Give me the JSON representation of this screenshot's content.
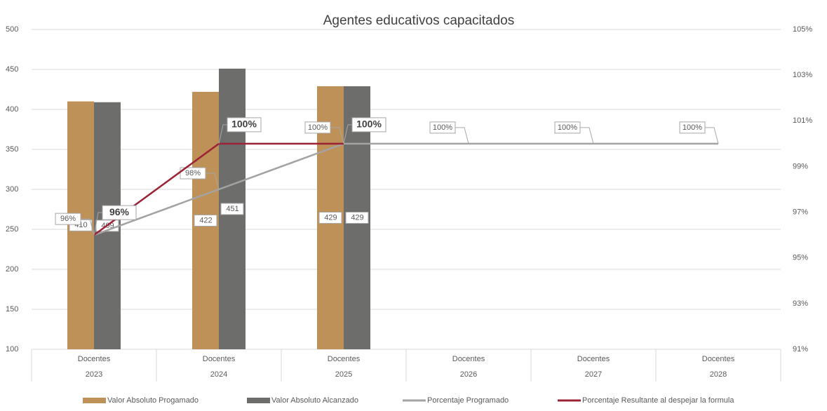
{
  "chart_data": {
    "type": "bar-line",
    "title": "Agentes educativos capacitados",
    "categories": [
      "Docentes",
      "Docentes",
      "Docentes",
      "Docentes",
      "Docentes",
      "Docentes"
    ],
    "category_groups": [
      "2023",
      "2024",
      "2025",
      "2026",
      "2027",
      "2028"
    ],
    "ylim": [
      100,
      500
    ],
    "yticks": [
      100,
      150,
      200,
      250,
      300,
      350,
      400,
      450,
      500
    ],
    "y2lim": [
      91,
      105
    ],
    "y2ticks": [
      {
        "value": 91,
        "label": "91%"
      },
      {
        "value": 93,
        "label": "93%"
      },
      {
        "value": 95,
        "label": "95%"
      },
      {
        "value": 97,
        "label": "97%"
      },
      {
        "value": 99,
        "label": "99%"
      },
      {
        "value": 101,
        "label": "101%"
      },
      {
        "value": 103,
        "label": "103%"
      },
      {
        "value": 105,
        "label": "105%"
      }
    ],
    "grid": true,
    "legend": "bottom",
    "series": [
      {
        "name": "Valor Absoluto Progamado",
        "kind": "bar",
        "color": "#bd9158",
        "values": [
          410,
          422,
          429,
          null,
          null,
          null
        ]
      },
      {
        "name": "Valor Absoluto Alcanzado",
        "kind": "bar",
        "color": "#6d6e6c",
        "values": [
          409,
          451,
          429,
          null,
          null,
          null
        ]
      },
      {
        "name": "Porcentaje Programado",
        "kind": "line",
        "axis": "y2",
        "color": "#a3a3a3",
        "values": [
          96,
          98,
          100,
          100,
          100,
          100
        ],
        "value_labels": [
          "96%",
          "98%",
          "100%",
          "100%",
          "100%",
          "100%"
        ]
      },
      {
        "name": "Porcentaje Resultante al despejar la formula",
        "kind": "line",
        "axis": "y2",
        "color": "#9b2335",
        "values": [
          96,
          100,
          100,
          null,
          null,
          null
        ],
        "value_labels": [
          "96%",
          "100%",
          "100%",
          null,
          null,
          null
        ]
      }
    ]
  }
}
